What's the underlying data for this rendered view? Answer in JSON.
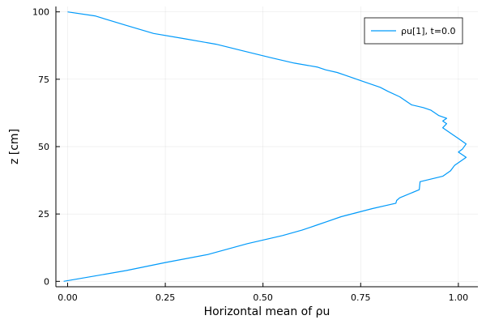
{
  "chart_data": {
    "type": "line",
    "xlabel": "Horizontal mean of ρu",
    "ylabel": "z [cm]",
    "xlim": [
      -0.03,
      1.05
    ],
    "ylim": [
      -2,
      102
    ],
    "x_ticks": [
      0.0,
      0.25,
      0.5,
      0.75,
      1.0
    ],
    "x_tick_labels": [
      "0.00",
      "0.25",
      "0.50",
      "0.75",
      "1.00"
    ],
    "y_ticks": [
      0,
      25,
      50,
      75,
      100
    ],
    "y_tick_labels": [
      "0",
      "25",
      "50",
      "75",
      "100"
    ],
    "grid": true,
    "legend_position": "top-right",
    "series": [
      {
        "name": "ρu[1], t=0.0",
        "color": "#009AFA",
        "x": [
          -0.01,
          0.07,
          0.15,
          0.25,
          0.36,
          0.46,
          0.55,
          0.6,
          0.64,
          0.66,
          0.7,
          0.78,
          0.84,
          0.842,
          0.85,
          0.9,
          0.902,
          0.96,
          0.98,
          0.99,
          1.02,
          1.0,
          1.01,
          1.02,
          1.0,
          0.98,
          0.96,
          0.97,
          0.96,
          0.97,
          0.95,
          0.94,
          0.93,
          0.91,
          0.88,
          0.87,
          0.85,
          0.82,
          0.8,
          0.76,
          0.71,
          0.69,
          0.66,
          0.64,
          0.62,
          0.58,
          0.52,
          0.45,
          0.38,
          0.3,
          0.22,
          0.15,
          0.07,
          0.0
        ],
        "y": [
          0,
          2,
          4,
          7,
          10,
          14,
          17,
          19,
          21,
          22,
          24,
          27,
          29,
          30,
          31,
          34,
          37,
          39,
          41,
          43,
          46,
          48,
          49,
          51,
          53,
          55,
          57,
          58.5,
          59.5,
          60.5,
          61.5,
          62.5,
          63.5,
          64.5,
          65.5,
          66.5,
          68.5,
          70.5,
          72,
          74,
          76.5,
          77.5,
          78.5,
          79.5,
          80,
          81,
          83,
          85.5,
          88,
          90,
          92,
          95,
          98.5,
          100
        ]
      }
    ]
  }
}
